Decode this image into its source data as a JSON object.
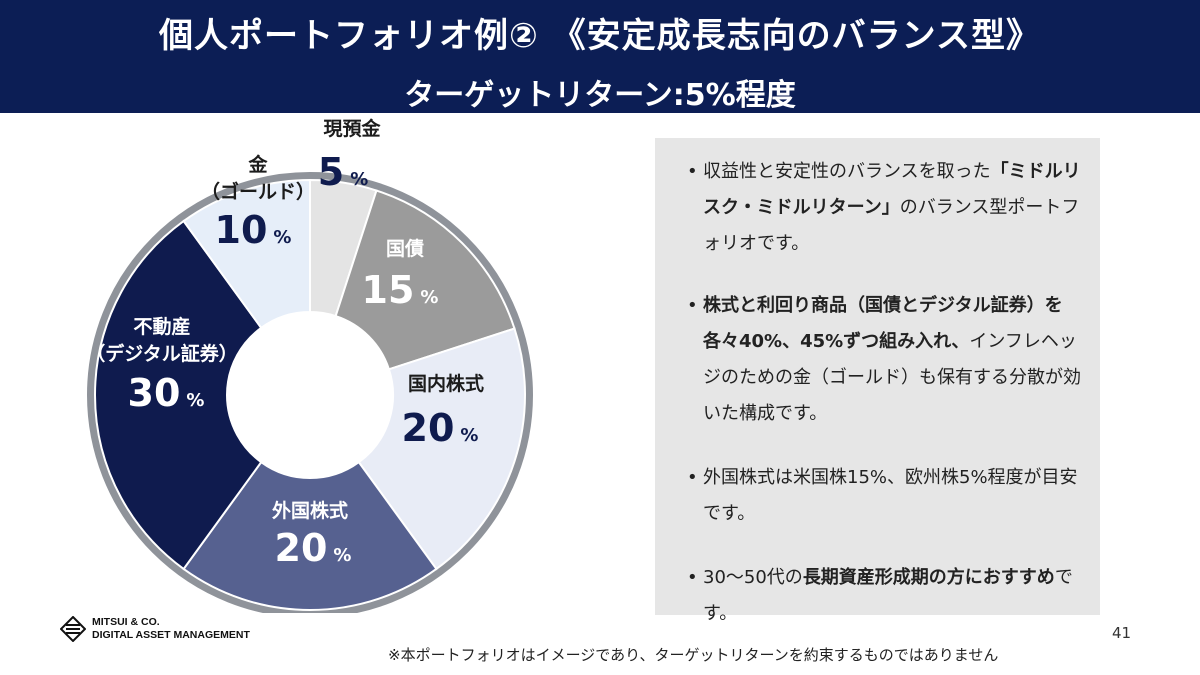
{
  "header": {
    "title": "個人ポートフォリオ例② 《安定成長志向のバランス型》",
    "subtitle": "ターゲットリターン:5%程度"
  },
  "chart_data": {
    "type": "pie",
    "variant": "donut",
    "unit": "%",
    "slices": [
      {
        "label": "現預金",
        "value": 5,
        "color": "#e4e4e4"
      },
      {
        "label": "国債",
        "value": 15,
        "color": "#9b9b9b"
      },
      {
        "label": "国内株式",
        "value": 20,
        "color": "#e8ecf6"
      },
      {
        "label": "外国株式",
        "value": 20,
        "color": "#566190"
      },
      {
        "label": "不動産\n（デジタル証券）",
        "value": 30,
        "color": "#0f1b4e"
      },
      {
        "label": "金\n（ゴールド）",
        "value": 10,
        "color": "#e6eef9"
      }
    ],
    "ring_color": "#8f939a"
  },
  "bullets": {
    "b1_pre": "収益性と安定性のバランスを取った",
    "b1_bold": "「ミドルリスク・ミドルリターン」",
    "b1_post": "のバランス型ポートフォリオです。",
    "b2_bold": "株式と利回り商品（国債とデジタル証券）を各々40%、45%ずつ組み入れ、",
    "b2_post": "インフレヘッジのための金（ゴールド）も保有する分散が効いた構成です。",
    "b3": "外国株式は米国株15%、欧州株5%程度が目安です。",
    "b4_pre": "30〜50代の",
    "b4_bold": "長期資産形成期の方におすすめ",
    "b4_post": "です。",
    "dot": "•"
  },
  "logo": {
    "line1": "MITSUI & CO.",
    "line2": "DIGITAL ASSET MANAGEMENT"
  },
  "page_number": "41",
  "footnote": "※本ポートフォリオはイメージであり、ターゲットリターンを約束するものではありません"
}
